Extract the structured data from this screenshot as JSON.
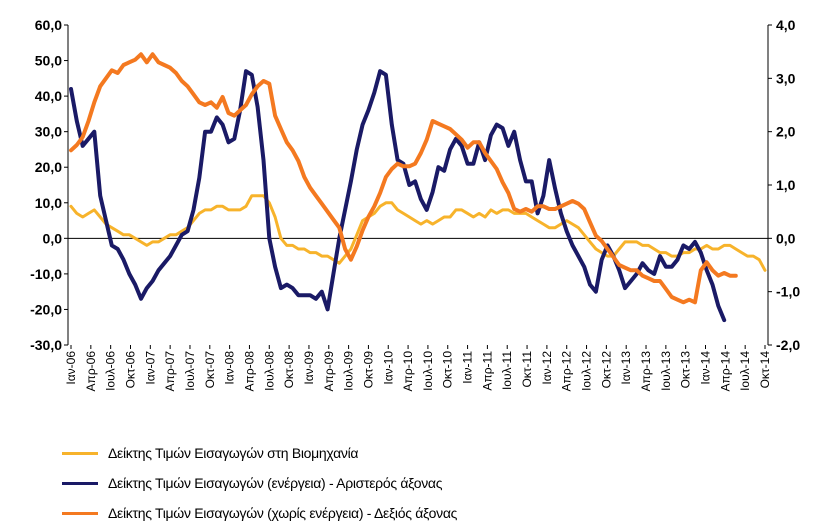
{
  "chart_data": {
    "type": "line",
    "title": "",
    "y_left": {
      "ticks": [
        "60,0",
        "50,0",
        "40,0",
        "30,0",
        "20,0",
        "10,0",
        "0,0",
        "-10,0",
        "-20,0",
        "-30,0"
      ],
      "range": [
        -30,
        60
      ]
    },
    "y_right": {
      "ticks": [
        "4,0",
        "3,0",
        "2,0",
        "1,0",
        "0,0",
        "-1,0",
        "-2,0"
      ],
      "range": [
        -2,
        4
      ]
    },
    "x_tick_labels": [
      "Ιαν-06",
      "Απρ-06",
      "Ιουλ-06",
      "Οκτ-06",
      "Ιαν-07",
      "Απρ-07",
      "Ιουλ-07",
      "Οκτ-07",
      "Ιαν-08",
      "Απρ-08",
      "Ιουλ-08",
      "Οκτ-08",
      "Ιαν-09",
      "Απρ-09",
      "Ιουλ-09",
      "Οκτ-09",
      "Ιαν-10",
      "Απρ-10",
      "Ιουλ-10",
      "Οκτ-10",
      "Ιαν-11",
      "Απρ-11",
      "Ιουλ-11",
      "Οκτ-11",
      "Ιαν-12",
      "Απρ-12",
      "Ιουλ-12",
      "Οκτ-12",
      "Ιαν-13",
      "Απρ-13",
      "Ιουλ-13",
      "Οκτ-13",
      "Ιαν-14",
      "Απρ-14",
      "Ιουλ-14",
      "Οκτ-14"
    ],
    "grid": false,
    "legend_position": "bottom",
    "series": [
      {
        "name": "Δείκτης Τιμών Εισαγωγών στη Βιομηχανία",
        "axis": "left",
        "color": "#f7b32b",
        "values": [
          9,
          7,
          6,
          7,
          8,
          6,
          4,
          3,
          2,
          1,
          1,
          0,
          -1,
          -2,
          -1,
          -1,
          0,
          1,
          1,
          2,
          3,
          5,
          7,
          8,
          8,
          9,
          9,
          8,
          8,
          8,
          9,
          12,
          12,
          12,
          10,
          6,
          0,
          -2,
          -2,
          -3,
          -3,
          -4,
          -4,
          -5,
          -5,
          -6,
          -7,
          -5,
          -3,
          1,
          5,
          6,
          7,
          9,
          10,
          10,
          8,
          7,
          6,
          5,
          4,
          5,
          4,
          5,
          6,
          6,
          8,
          8,
          7,
          6,
          7,
          6,
          8,
          7,
          8,
          8,
          7,
          7,
          7,
          6,
          5,
          4,
          3,
          3,
          4,
          5,
          4,
          3,
          1,
          -1,
          -3,
          -4,
          -5,
          -5,
          -3,
          -1,
          -1,
          -1,
          -2,
          -2,
          -3,
          -4,
          -4,
          -5,
          -5,
          -4,
          -4,
          -3,
          -3,
          -2,
          -3,
          -3,
          -2,
          -2,
          -3,
          -4,
          -5,
          -5,
          -6,
          -9
        ]
      },
      {
        "name": "Δείκτης Τιμών Εισαγωγών (ενέργεια) - Αριστερός άξονας",
        "axis": "left",
        "color": "#1a1a66",
        "values": [
          42,
          33,
          26,
          28,
          30,
          12,
          5,
          -2,
          -3,
          -6,
          -10,
          -13,
          -17,
          -14,
          -12,
          -9,
          -7,
          -5,
          -2,
          1,
          2,
          8,
          17,
          30,
          30,
          34,
          32,
          27,
          28,
          36,
          47,
          46,
          37,
          22,
          0,
          -8,
          -14,
          -13,
          -14,
          -16,
          -16,
          -16,
          -17,
          -15,
          -20,
          -10,
          0,
          8,
          16,
          25,
          32,
          36,
          41,
          47,
          46,
          32,
          22,
          21,
          15,
          16,
          11,
          8,
          13,
          20,
          19,
          25,
          28,
          26,
          21,
          21,
          27,
          22,
          29,
          32,
          31,
          26,
          30,
          22,
          16,
          16,
          7,
          12,
          22,
          14,
          7,
          2,
          -2,
          -5,
          -8,
          -13,
          -15,
          -6,
          -2,
          -5,
          -9,
          -14,
          -12,
          -10,
          -7,
          -9,
          -10,
          -5,
          -8,
          -8,
          -6,
          -2,
          -3,
          -1,
          -4,
          -9,
          -13,
          -19,
          -23
        ]
      },
      {
        "name": "Δείκτης Τιμών Εισαγωγών (χωρίς ενέργεια) - Δεξιός άξονας",
        "axis": "right",
        "color": "#f47920",
        "values": [
          1.65,
          1.75,
          1.9,
          2.2,
          2.55,
          2.85,
          3.0,
          3.15,
          3.1,
          3.25,
          3.3,
          3.35,
          3.45,
          3.3,
          3.45,
          3.3,
          3.25,
          3.2,
          3.1,
          2.95,
          2.85,
          2.7,
          2.55,
          2.5,
          2.55,
          2.45,
          2.65,
          2.35,
          2.3,
          2.4,
          2.5,
          2.7,
          2.85,
          2.95,
          2.9,
          2.3,
          2.05,
          1.8,
          1.65,
          1.45,
          1.15,
          0.95,
          0.8,
          0.65,
          0.5,
          0.35,
          0.2,
          -0.2,
          -0.4,
          -0.15,
          0.15,
          0.4,
          0.6,
          0.85,
          1.15,
          1.3,
          1.4,
          1.35,
          1.35,
          1.4,
          1.6,
          1.85,
          2.2,
          2.15,
          2.1,
          2.05,
          1.95,
          1.85,
          1.7,
          1.8,
          1.8,
          1.6,
          1.45,
          1.3,
          1.05,
          0.85,
          0.55,
          0.5,
          0.55,
          0.5,
          0.6,
          0.6,
          0.55,
          0.55,
          0.6,
          0.65,
          0.7,
          0.65,
          0.55,
          0.3,
          0.05,
          -0.05,
          -0.2,
          -0.35,
          -0.5,
          -0.55,
          -0.6,
          -0.6,
          -0.7,
          -0.75,
          -0.8,
          -0.8,
          -0.95,
          -1.1,
          -1.15,
          -1.2,
          -1.15,
          -1.2,
          -0.6,
          -0.45,
          -0.6,
          -0.7,
          -0.65,
          -0.7,
          -0.7
        ]
      }
    ]
  }
}
